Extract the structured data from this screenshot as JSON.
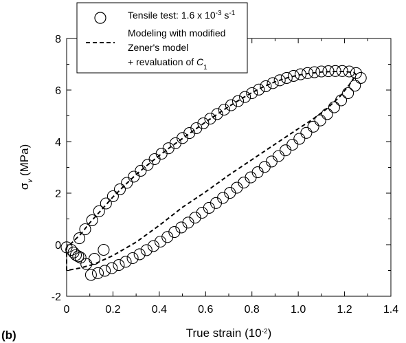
{
  "chart_data": {
    "type": "scatter",
    "panel_label": "(b)",
    "xlabel": {
      "base": "True strain (10",
      "sup": "-2",
      "tail": ")"
    },
    "ylabel": {
      "base": "σ",
      "sub": "v",
      "tail": " (MPa)"
    },
    "xlim": [
      0,
      1.4
    ],
    "ylim": [
      -2,
      8
    ],
    "xticks": [
      0,
      0.2,
      0.4,
      0.6,
      0.8,
      1.0,
      1.2,
      1.4
    ],
    "xtick_labels": [
      "0",
      "0.2",
      "0.4",
      "0.6",
      "0.8",
      "1.0",
      "1.2",
      "1.4"
    ],
    "yticks": [
      -2,
      0,
      2,
      4,
      6,
      8
    ],
    "ytick_labels": [
      "-2",
      "0",
      "2",
      "4",
      "6",
      "8"
    ],
    "grid": false,
    "legend": {
      "placement": "top-left",
      "entries": [
        {
          "marker": "open-circle",
          "parts": [
            {
              "text": "Tensile test: 1.6 x 10",
              "style": "normal"
            },
            {
              "text": "-3",
              "style": "sup"
            },
            {
              "text": " s",
              "style": "normal"
            },
            {
              "text": "-1",
              "style": "sup"
            }
          ]
        },
        {
          "marker": "dashed-line",
          "lines": [
            [
              {
                "text": "Modeling with modified",
                "style": "normal"
              }
            ],
            [
              {
                "text": "Zener's model",
                "style": "normal"
              }
            ],
            [
              {
                "text": "+ revaluation of ",
                "style": "normal"
              },
              {
                "text": "C",
                "style": "italic"
              },
              {
                "text": "1",
                "style": "sub"
              }
            ]
          ]
        }
      ]
    },
    "series": [
      {
        "name": "Tensile test: 1.6 x 10-3 s-1",
        "kind": "markers",
        "points": [
          [
            0.0,
            -0.1
          ],
          [
            0.02,
            -0.2
          ],
          [
            0.03,
            -0.3
          ],
          [
            0.04,
            -0.4
          ],
          [
            0.05,
            -0.45
          ],
          [
            0.06,
            -0.5
          ],
          [
            0.055,
            0.25
          ],
          [
            0.08,
            0.6
          ],
          [
            0.11,
            0.95
          ],
          [
            0.14,
            1.3
          ],
          [
            0.17,
            1.6
          ],
          [
            0.2,
            1.88
          ],
          [
            0.23,
            2.15
          ],
          [
            0.26,
            2.4
          ],
          [
            0.29,
            2.64
          ],
          [
            0.32,
            2.87
          ],
          [
            0.35,
            3.1
          ],
          [
            0.38,
            3.32
          ],
          [
            0.41,
            3.53
          ],
          [
            0.44,
            3.74
          ],
          [
            0.47,
            3.94
          ],
          [
            0.5,
            4.14
          ],
          [
            0.53,
            4.33
          ],
          [
            0.56,
            4.52
          ],
          [
            0.59,
            4.71
          ],
          [
            0.62,
            4.89
          ],
          [
            0.65,
            5.07
          ],
          [
            0.68,
            5.24
          ],
          [
            0.71,
            5.41
          ],
          [
            0.74,
            5.57
          ],
          [
            0.77,
            5.73
          ],
          [
            0.8,
            5.88
          ],
          [
            0.83,
            6.02
          ],
          [
            0.86,
            6.15
          ],
          [
            0.89,
            6.27
          ],
          [
            0.92,
            6.38
          ],
          [
            0.95,
            6.47
          ],
          [
            0.98,
            6.55
          ],
          [
            1.01,
            6.61
          ],
          [
            1.04,
            6.66
          ],
          [
            1.07,
            6.69
          ],
          [
            1.1,
            6.72
          ],
          [
            1.13,
            6.73
          ],
          [
            1.16,
            6.74
          ],
          [
            1.19,
            6.74
          ],
          [
            1.22,
            6.72
          ],
          [
            1.25,
            6.66
          ],
          [
            1.27,
            6.47
          ],
          [
            1.245,
            6.17
          ],
          [
            1.215,
            5.88
          ],
          [
            1.185,
            5.6
          ],
          [
            1.155,
            5.33
          ],
          [
            1.125,
            5.07
          ],
          [
            1.095,
            4.82
          ],
          [
            1.065,
            4.58
          ],
          [
            1.035,
            4.34
          ],
          [
            1.005,
            4.11
          ],
          [
            0.975,
            3.88
          ],
          [
            0.945,
            3.66
          ],
          [
            0.915,
            3.44
          ],
          [
            0.885,
            3.23
          ],
          [
            0.855,
            3.02
          ],
          [
            0.825,
            2.81
          ],
          [
            0.795,
            2.61
          ],
          [
            0.765,
            2.41
          ],
          [
            0.735,
            2.21
          ],
          [
            0.705,
            2.01
          ],
          [
            0.675,
            1.82
          ],
          [
            0.645,
            1.62
          ],
          [
            0.615,
            1.43
          ],
          [
            0.585,
            1.24
          ],
          [
            0.555,
            1.05
          ],
          [
            0.525,
            0.86
          ],
          [
            0.495,
            0.67
          ],
          [
            0.465,
            0.49
          ],
          [
            0.435,
            0.3
          ],
          [
            0.405,
            0.12
          ],
          [
            0.375,
            -0.05
          ],
          [
            0.345,
            -0.21
          ],
          [
            0.315,
            -0.37
          ],
          [
            0.285,
            -0.52
          ],
          [
            0.255,
            -0.66
          ],
          [
            0.225,
            -0.79
          ],
          [
            0.195,
            -0.91
          ],
          [
            0.165,
            -1.01
          ],
          [
            0.135,
            -1.1
          ],
          [
            0.105,
            -1.17
          ],
          [
            0.085,
            -0.75
          ],
          [
            0.12,
            -0.55
          ],
          [
            0.16,
            -0.2
          ]
        ]
      },
      {
        "name": "Modeling with modified Zener's model + revaluation of C1",
        "kind": "dashed-line",
        "points": [
          [
            0.0,
            -1.0
          ],
          [
            0.0,
            -0.1
          ],
          [
            0.02,
            0.05
          ],
          [
            0.06,
            0.4
          ],
          [
            0.1,
            0.85
          ],
          [
            0.15,
            1.35
          ],
          [
            0.2,
            1.85
          ],
          [
            0.25,
            2.3
          ],
          [
            0.3,
            2.72
          ],
          [
            0.35,
            3.1
          ],
          [
            0.4,
            3.46
          ],
          [
            0.45,
            3.8
          ],
          [
            0.5,
            4.12
          ],
          [
            0.55,
            4.44
          ],
          [
            0.6,
            4.76
          ],
          [
            0.65,
            5.06
          ],
          [
            0.7,
            5.36
          ],
          [
            0.75,
            5.64
          ],
          [
            0.8,
            5.9
          ],
          [
            0.85,
            6.13
          ],
          [
            0.9,
            6.32
          ],
          [
            0.95,
            6.47
          ],
          [
            1.0,
            6.58
          ],
          [
            1.05,
            6.65
          ],
          [
            1.1,
            6.7
          ],
          [
            1.15,
            6.72
          ],
          [
            1.2,
            6.72
          ],
          [
            1.24,
            6.68
          ],
          [
            1.25,
            6.6
          ],
          [
            1.22,
            6.2
          ],
          [
            1.18,
            5.75
          ],
          [
            1.12,
            5.25
          ],
          [
            1.06,
            4.85
          ],
          [
            1.0,
            4.5
          ],
          [
            0.9,
            3.9
          ],
          [
            0.8,
            3.3
          ],
          [
            0.7,
            2.7
          ],
          [
            0.6,
            2.05
          ],
          [
            0.5,
            1.45
          ],
          [
            0.4,
            0.75
          ],
          [
            0.3,
            0.1
          ],
          [
            0.2,
            -0.42
          ],
          [
            0.12,
            -0.75
          ],
          [
            0.06,
            -0.9
          ],
          [
            0.0,
            -1.0
          ]
        ]
      }
    ]
  }
}
